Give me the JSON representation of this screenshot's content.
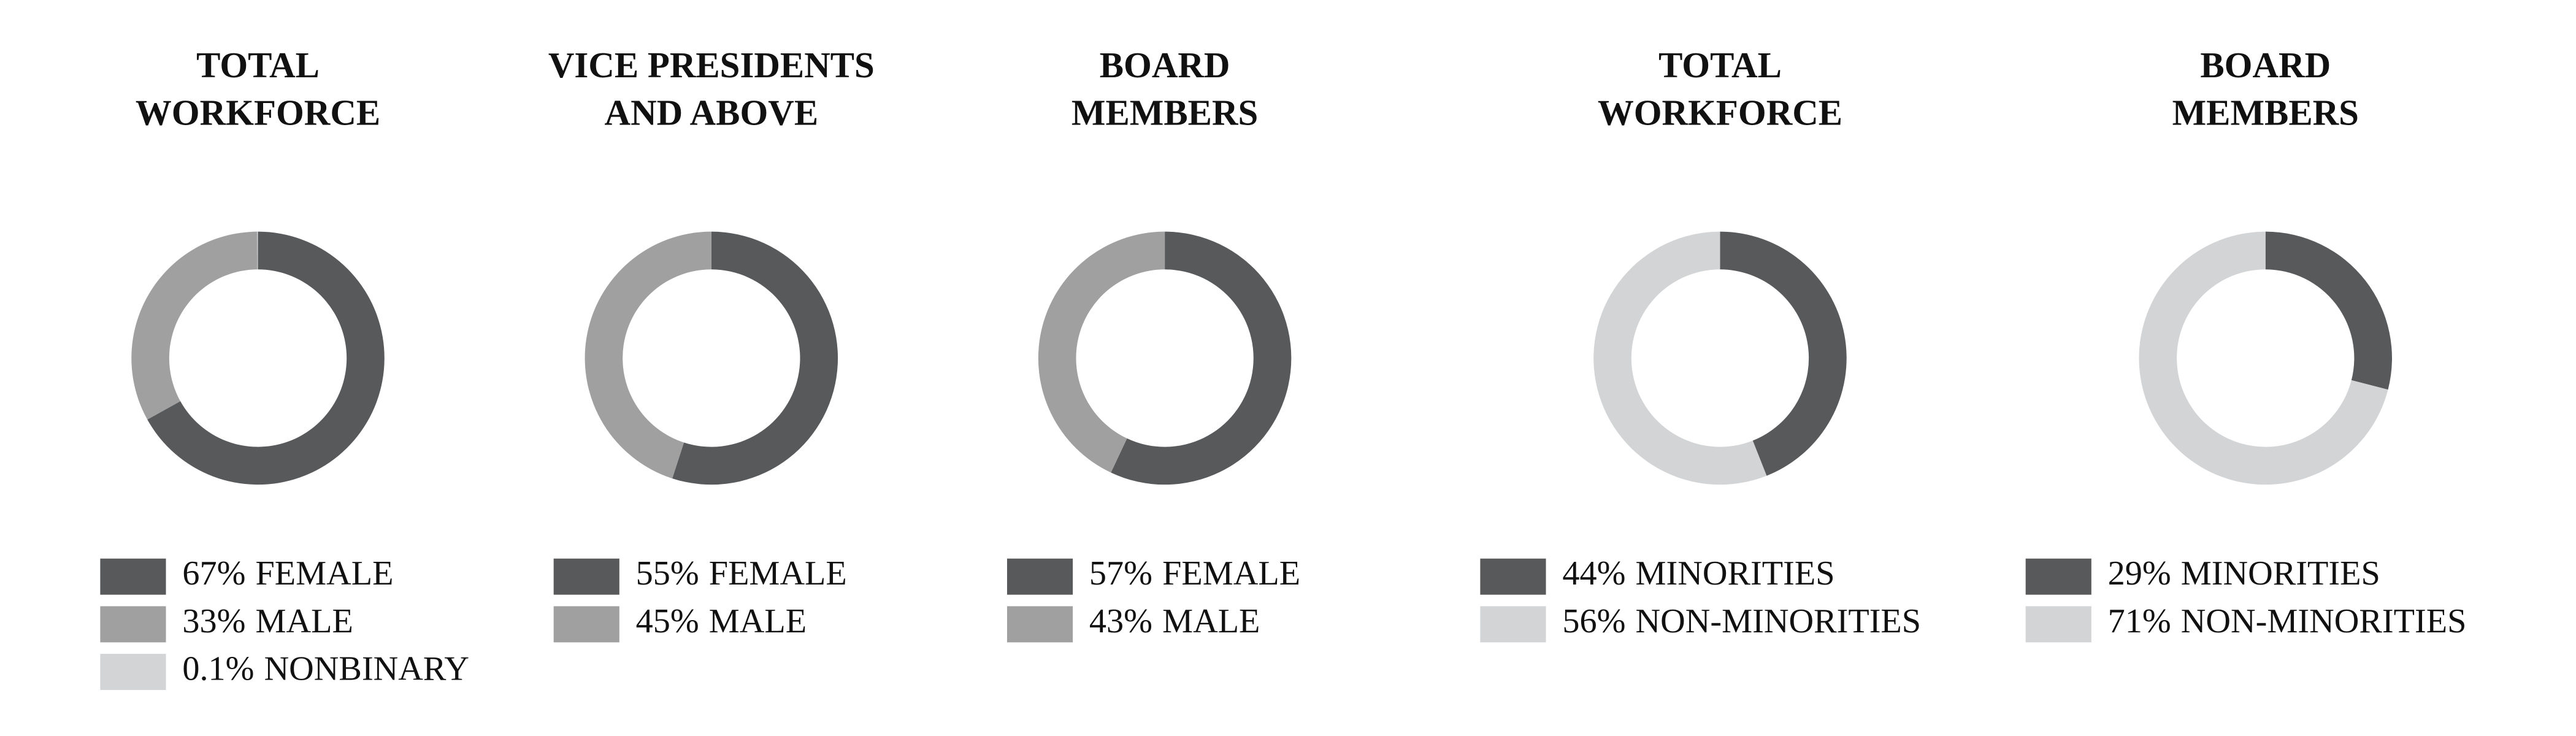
{
  "chart_data": [
    {
      "type": "pie",
      "title": [
        "TOTAL",
        "WORKFORCE"
      ],
      "categories": [
        "FEMALE",
        "MALE",
        "NONBINARY"
      ],
      "values": [
        67,
        33,
        0.1
      ],
      "value_labels": [
        "67%",
        "33%",
        "0.1%"
      ],
      "colors": [
        "#58595b",
        "#a0a0a0",
        "#d3d4d5"
      ]
    },
    {
      "type": "pie",
      "title": [
        "VICE PRESIDENTS",
        "AND ABOVE"
      ],
      "categories": [
        "FEMALE",
        "MALE"
      ],
      "values": [
        55,
        45
      ],
      "value_labels": [
        "55%",
        "45%"
      ],
      "colors": [
        "#58595b",
        "#a0a0a0"
      ]
    },
    {
      "type": "pie",
      "title": [
        "BOARD",
        "MEMBERS"
      ],
      "categories": [
        "FEMALE",
        "MALE"
      ],
      "values": [
        57,
        43
      ],
      "value_labels": [
        "57%",
        "43%"
      ],
      "colors": [
        "#58595b",
        "#a0a0a0"
      ]
    },
    {
      "type": "pie",
      "title": [
        "TOTAL",
        "WORKFORCE"
      ],
      "categories": [
        "MINORITIES",
        "NON-MINORITIES"
      ],
      "values": [
        44,
        56
      ],
      "value_labels": [
        "44%",
        "56%"
      ],
      "colors": [
        "#58595b",
        "#d3d4d5"
      ]
    },
    {
      "type": "pie",
      "title": [
        "BOARD",
        "MEMBERS"
      ],
      "categories": [
        "MINORITIES",
        "NON-MINORITIES"
      ],
      "values": [
        29,
        71
      ],
      "value_labels": [
        "29%",
        "71%"
      ],
      "colors": [
        "#58595b",
        "#d3d4d5"
      ]
    }
  ]
}
